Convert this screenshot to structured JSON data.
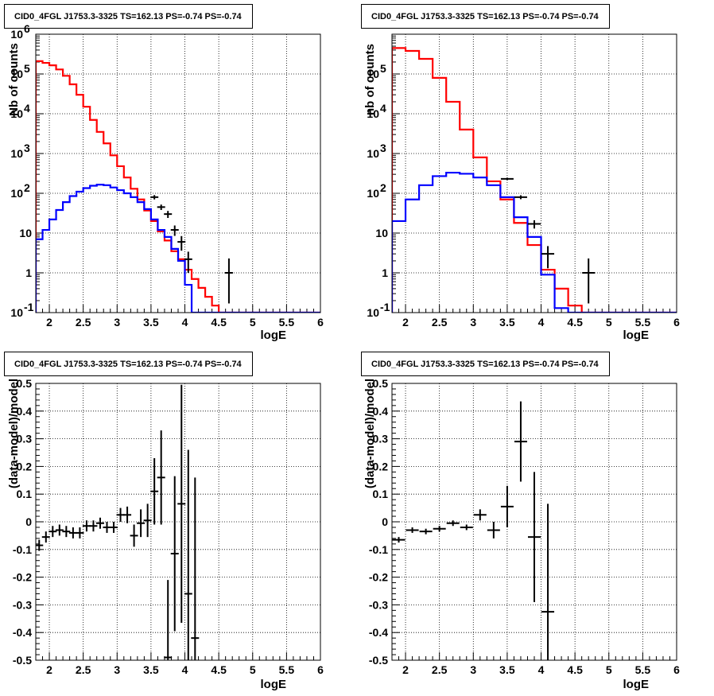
{
  "chart_data": [
    {
      "type": "step-histogram",
      "title": "CID0_4FGL J1753.3-3325 TS=162.13 PS=-0.74 PS=-0.74",
      "xlabel": "logE",
      "ylabel": "Nb of counts",
      "xlim": [
        1.8,
        6.0
      ],
      "ylim": [
        0.1,
        1000000
      ],
      "yscale": "log",
      "grid": true,
      "xticks": [
        "2",
        "2.5",
        "3",
        "3.5",
        "4",
        "4.5",
        "5",
        "5.5",
        "6"
      ],
      "yticks": [
        "10^-1",
        "1",
        "10",
        "10^2",
        "10^3",
        "10^4",
        "10^5",
        "10^6"
      ],
      "series": [
        {
          "color": "#ff0000",
          "kind": "step",
          "bin_edges": [
            1.8,
            1.9,
            2.0,
            2.1,
            2.2,
            2.3,
            2.4,
            2.5,
            2.6,
            2.7,
            2.8,
            2.9,
            3.0,
            3.1,
            3.2,
            3.3,
            3.4,
            3.5,
            3.6,
            3.7,
            3.8,
            3.9,
            4.0,
            4.1,
            4.2,
            4.3,
            4.4,
            4.5,
            4.6,
            4.7,
            4.8,
            4.9,
            5.0,
            5.1,
            5.2,
            5.3,
            5.4,
            5.5,
            5.6,
            5.7,
            5.8,
            5.9,
            6.0
          ],
          "values": [
            210000,
            190000,
            165000,
            130000,
            90000,
            55000,
            30000,
            15000,
            7000,
            3500,
            1800,
            900,
            480,
            250,
            130,
            70,
            37,
            20,
            11,
            6.5,
            3.5,
            2.2,
            1.2,
            0.7,
            0.42,
            0.25,
            0.15,
            0.1,
            0.1,
            0.1,
            0.1,
            0.1,
            0.1,
            0.1,
            0.1,
            0.1,
            0.1,
            0.1,
            0.1,
            0.1,
            0.1,
            0.1
          ]
        },
        {
          "color": "#0000ff",
          "kind": "step",
          "bin_edges": [
            1.8,
            1.9,
            2.0,
            2.1,
            2.2,
            2.3,
            2.4,
            2.5,
            2.6,
            2.7,
            2.8,
            2.9,
            3.0,
            3.1,
            3.2,
            3.3,
            3.4,
            3.5,
            3.6,
            3.7,
            3.8,
            3.9,
            4.0,
            4.1,
            4.2,
            4.3,
            4.4,
            4.5,
            4.6,
            4.7,
            4.8,
            4.9,
            5.0,
            5.1,
            5.2,
            5.3,
            5.4,
            5.5,
            5.6,
            5.7,
            5.8,
            5.9,
            6.0
          ],
          "values": [
            7,
            12,
            22,
            38,
            60,
            85,
            110,
            135,
            155,
            165,
            160,
            140,
            120,
            100,
            80,
            60,
            40,
            22,
            12,
            8,
            4,
            2,
            0.5,
            0.1,
            0.1,
            0.1,
            0.1,
            0.1,
            0.1,
            0.1,
            0.1,
            0.1,
            0.1,
            0.1,
            0.1,
            0.1,
            0.1,
            0.1,
            0.1,
            0.1,
            0.1,
            0.1
          ]
        },
        {
          "color": "#000000",
          "kind": "points",
          "x": [
            3.55,
            3.65,
            3.75,
            3.85,
            3.95,
            4.05,
            4.65
          ],
          "y": [
            80,
            45,
            30,
            12,
            6,
            2.2,
            1
          ],
          "yerr_lo": [
            10,
            7,
            6,
            3.5,
            2.4,
            1.2,
            0.83
          ],
          "yerr_hi": [
            10,
            7,
            6,
            3.5,
            2.4,
            1.2,
            1.3
          ]
        }
      ]
    },
    {
      "type": "step-histogram",
      "title": "CID0_4FGL J1753.3-3325 TS=162.13 PS=-0.74 PS=-0.74",
      "xlabel": "logE",
      "ylabel": "nb of counts",
      "xlim": [
        1.8,
        6.0
      ],
      "ylim": [
        0.1,
        1000000
      ],
      "yscale": "log",
      "grid": true,
      "xticks": [
        "2",
        "2.5",
        "3",
        "3.5",
        "4",
        "4.5",
        "5",
        "5.5",
        "6"
      ],
      "yticks": [
        "10^-1",
        "1",
        "10",
        "10^2",
        "10^3",
        "10^4",
        "10^5"
      ],
      "series": [
        {
          "color": "#ff0000",
          "kind": "step",
          "bin_edges": [
            1.8,
            2.0,
            2.2,
            2.4,
            2.6,
            2.8,
            3.0,
            3.2,
            3.4,
            3.6,
            3.8,
            4.0,
            4.2,
            4.4,
            4.6,
            4.8,
            5.0,
            5.2,
            5.4,
            5.6,
            5.8,
            6.0
          ],
          "values": [
            450000,
            380000,
            240000,
            80000,
            20000,
            4000,
            800,
            200,
            70,
            18,
            5,
            1.2,
            0.4,
            0.15,
            0.1,
            0.1,
            0.1,
            0.1,
            0.1,
            0.1,
            0.1
          ]
        },
        {
          "color": "#0000ff",
          "kind": "step",
          "bin_edges": [
            1.8,
            2.0,
            2.2,
            2.4,
            2.6,
            2.8,
            3.0,
            3.2,
            3.4,
            3.6,
            3.8,
            4.0,
            4.2,
            4.4,
            4.6,
            4.8,
            5.0,
            5.2,
            5.4,
            5.6,
            5.8,
            6.0
          ],
          "values": [
            20,
            70,
            160,
            270,
            330,
            310,
            250,
            160,
            80,
            25,
            8,
            0.9,
            0.13,
            0.1,
            0.1,
            0.1,
            0.1,
            0.1,
            0.1,
            0.1,
            0.1
          ]
        },
        {
          "color": "#000000",
          "kind": "points",
          "x": [
            3.5,
            3.7,
            3.9,
            4.1,
            4.7
          ],
          "y": [
            230,
            80,
            17,
            3,
            1
          ],
          "yerr_lo": [
            15,
            9,
            4,
            1.7,
            0.83
          ],
          "yerr_hi": [
            15,
            9,
            4,
            1.7,
            1.3
          ]
        }
      ]
    },
    {
      "type": "scatter",
      "title": "CID0_4FGL J1753.3-3325 TS=162.13 PS=-0.74 PS=-0.74",
      "xlabel": "logE",
      "ylabel": "(data-model)/model",
      "xlim": [
        1.8,
        6.0
      ],
      "ylim": [
        -0.5,
        0.5
      ],
      "grid": true,
      "xticks": [
        "2",
        "2.5",
        "3",
        "3.5",
        "4",
        "4.5",
        "5",
        "5.5",
        "6"
      ],
      "yticks": [
        "-0.5",
        "-0.4",
        "-0.3",
        "-0.2",
        "-0.1",
        "0",
        "0.1",
        "0.2",
        "0.3",
        "0.4",
        "0.5"
      ],
      "series": [
        {
          "color": "#000000",
          "kind": "points",
          "x": [
            1.85,
            1.95,
            2.05,
            2.15,
            2.25,
            2.35,
            2.45,
            2.55,
            2.65,
            2.75,
            2.85,
            2.95,
            3.05,
            3.15,
            3.25,
            3.35,
            3.45,
            3.55,
            3.65,
            3.75,
            3.85,
            3.95,
            4.05,
            4.15
          ],
          "y": [
            -0.085,
            -0.055,
            -0.035,
            -0.03,
            -0.035,
            -0.04,
            -0.04,
            -0.015,
            -0.015,
            -0.005,
            -0.02,
            -0.02,
            0.025,
            0.025,
            -0.05,
            -0.005,
            0.005,
            0.11,
            0.16,
            -0.49,
            -0.115,
            0.065,
            -0.26,
            -0.42
          ],
          "yerr": [
            0.02,
            0.02,
            0.02,
            0.02,
            0.02,
            0.02,
            0.02,
            0.02,
            0.02,
            0.02,
            0.02,
            0.02,
            0.025,
            0.03,
            0.04,
            0.05,
            0.06,
            0.12,
            0.17,
            0.28,
            0.28,
            0.43,
            0.52,
            0.58
          ]
        }
      ]
    },
    {
      "type": "scatter",
      "title": "CID0_4FGL J1753.3-3325 TS=162.13 PS=-0.74 PS=-0.74",
      "xlabel": "logE",
      "ylabel": "(data-model)/model",
      "xlim": [
        1.8,
        6.0
      ],
      "ylim": [
        -0.5,
        0.5
      ],
      "grid": true,
      "xticks": [
        "2",
        "2.5",
        "3",
        "3.5",
        "4",
        "4.5",
        "5",
        "5.5",
        "6"
      ],
      "yticks": [
        "-0.5",
        "-0.4",
        "-0.3",
        "-0.2",
        "-0.1",
        "0",
        "0.1",
        "0.2",
        "0.3",
        "0.4",
        "0.5"
      ],
      "series": [
        {
          "color": "#000000",
          "kind": "points",
          "x": [
            1.9,
            2.1,
            2.3,
            2.5,
            2.7,
            2.9,
            3.1,
            3.3,
            3.5,
            3.7,
            3.9,
            4.1
          ],
          "y": [
            -0.065,
            -0.03,
            -0.035,
            -0.025,
            -0.005,
            -0.02,
            0.025,
            -0.03,
            0.055,
            0.29,
            -0.055,
            -0.325
          ],
          "yerr": [
            0.01,
            0.01,
            0.01,
            0.01,
            0.01,
            0.01,
            0.02,
            0.03,
            0.075,
            0.145,
            0.235,
            0.39
          ]
        }
      ]
    }
  ]
}
